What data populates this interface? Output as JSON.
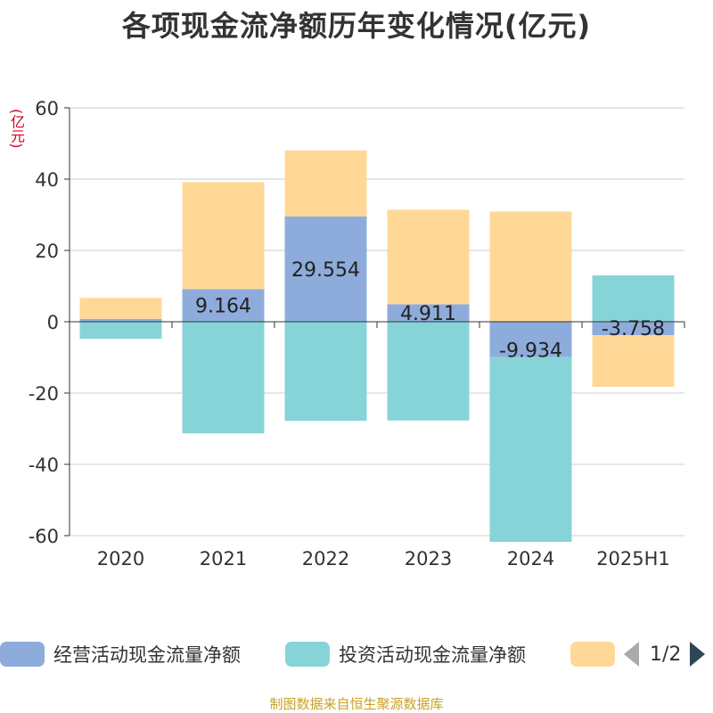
{
  "chart_data": {
    "type": "bar",
    "stacked": true,
    "title": "各项现金流净额历年变化情况(亿元)",
    "unit_label": "(亿元)",
    "categories": [
      "2020",
      "2021",
      "2022",
      "2023",
      "2024",
      "2025H1"
    ],
    "ylim": [
      -60,
      60
    ],
    "yticks": [
      60,
      40,
      20,
      0,
      -20,
      -40,
      -60
    ],
    "grid": true,
    "legend_position": "bottom",
    "series": [
      {
        "name": "经营活动现金流量净额",
        "color": "#8eacdb",
        "values": [
          0.8,
          9.164,
          29.554,
          4.911,
          -9.934,
          -3.758
        ],
        "labels": [
          "",
          "9.164",
          "29.554",
          "4.911",
          "-9.934",
          "-3.758"
        ]
      },
      {
        "name": "投资活动现金流量净额",
        "color": "#86d4d8",
        "values": [
          -4.8,
          -31.3,
          -27.8,
          -27.7,
          -51.8,
          13.0
        ],
        "labels": [
          "",
          "",
          "",
          "",
          "",
          ""
        ]
      },
      {
        "name": "",
        "color": "#ffd898",
        "values": [
          5.9,
          30.0,
          18.5,
          26.5,
          30.9,
          -14.5
        ],
        "labels": [
          "",
          "",
          "",
          "",
          "",
          ""
        ]
      }
    ],
    "legend_page": "1/2"
  },
  "source": "制图数据来自恒生聚源数据库"
}
